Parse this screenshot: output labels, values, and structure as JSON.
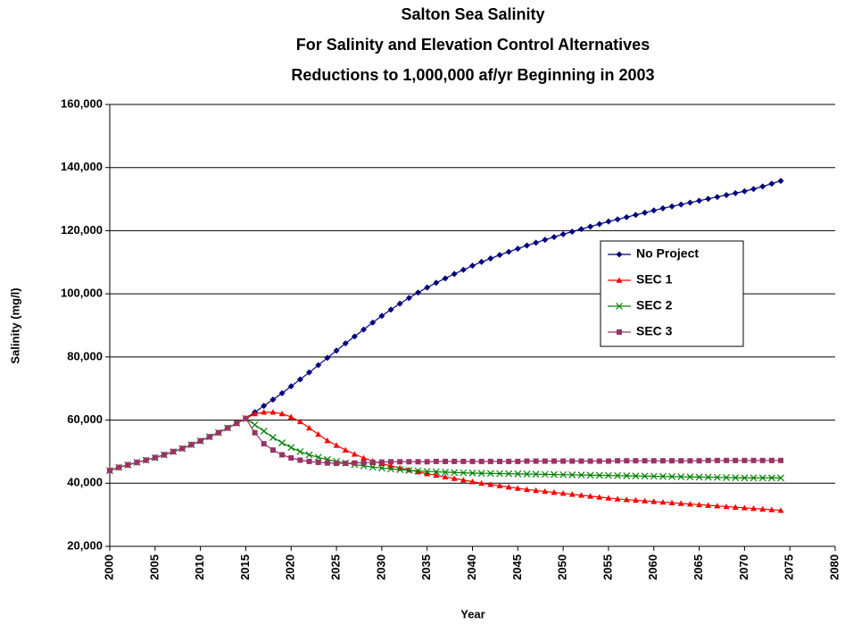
{
  "chart_data": {
    "type": "line",
    "title": [
      "Salton Sea Salinity",
      "For Salinity and Elevation Control Alternatives",
      "Reductions to 1,000,000 af/yr Beginning in 2003"
    ],
    "xlabel": "Year",
    "ylabel": "Salinity (mg/l)",
    "xlim": [
      2000,
      2080
    ],
    "xticks": [
      2000,
      2005,
      2010,
      2015,
      2020,
      2025,
      2030,
      2035,
      2040,
      2045,
      2050,
      2055,
      2060,
      2065,
      2070,
      2075,
      2080
    ],
    "ylim": [
      20000,
      160000
    ],
    "yticks": [
      {
        "value": 20000,
        "label": "20,000"
      },
      {
        "value": 40000,
        "label": "40,000"
      },
      {
        "value": 60000,
        "label": "60,000"
      },
      {
        "value": 80000,
        "label": "80,000"
      },
      {
        "value": 100000,
        "label": "100,000"
      },
      {
        "value": 120000,
        "label": "120,000"
      },
      {
        "value": 140000,
        "label": "140,000"
      },
      {
        "value": 160000,
        "label": "160,000"
      }
    ],
    "grid": true,
    "legend": "right",
    "x": [
      2000,
      2001,
      2002,
      2003,
      2004,
      2005,
      2006,
      2007,
      2008,
      2009,
      2010,
      2011,
      2012,
      2013,
      2014,
      2015,
      2016,
      2017,
      2018,
      2019,
      2020,
      2021,
      2022,
      2023,
      2024,
      2025,
      2026,
      2027,
      2028,
      2029,
      2030,
      2031,
      2032,
      2033,
      2034,
      2035,
      2036,
      2037,
      2038,
      2039,
      2040,
      2041,
      2042,
      2043,
      2044,
      2045,
      2046,
      2047,
      2048,
      2049,
      2050,
      2051,
      2052,
      2053,
      2054,
      2055,
      2056,
      2057,
      2058,
      2059,
      2060,
      2061,
      2062,
      2063,
      2064,
      2065,
      2066,
      2067,
      2068,
      2069,
      2070,
      2071,
      2072,
      2073,
      2074
    ],
    "series": [
      {
        "name": "No Project",
        "color": "#000080",
        "marker": "diamond",
        "values": [
          44000,
          45000,
          45800,
          46600,
          47300,
          48100,
          49000,
          50000,
          51000,
          52200,
          53400,
          54700,
          56000,
          57500,
          59000,
          60500,
          62500,
          64500,
          66500,
          68500,
          70700,
          72900,
          75100,
          77400,
          79700,
          82000,
          84300,
          86500,
          88700,
          90900,
          93000,
          95000,
          96900,
          98700,
          100400,
          102000,
          103500,
          104900,
          106300,
          107600,
          108900,
          110100,
          111200,
          112300,
          113300,
          114300,
          115300,
          116200,
          117100,
          118000,
          118900,
          119700,
          120500,
          121300,
          122100,
          122900,
          123600,
          124300,
          125000,
          125700,
          126400,
          127100,
          127700,
          128300,
          128900,
          129500,
          130100,
          130700,
          131300,
          131900,
          132500,
          133200,
          134000,
          134900,
          135800
        ]
      },
      {
        "name": "SEC 1",
        "color": "#ff0000",
        "marker": "triangle",
        "values": [
          44000,
          45000,
          45800,
          46600,
          47300,
          48100,
          49000,
          50000,
          51000,
          52200,
          53400,
          54700,
          56000,
          57500,
          59000,
          60500,
          62000,
          62500,
          62500,
          62000,
          61000,
          59500,
          57500,
          55500,
          53500,
          52000,
          50500,
          49200,
          48000,
          47000,
          46200,
          45500,
          44800,
          44200,
          43600,
          43000,
          42500,
          42000,
          41500,
          41000,
          40500,
          40000,
          39600,
          39200,
          38800,
          38400,
          38000,
          37700,
          37400,
          37100,
          36800,
          36500,
          36200,
          35900,
          35600,
          35300,
          35000,
          34800,
          34600,
          34400,
          34200,
          34000,
          33800,
          33600,
          33400,
          33200,
          33000,
          32800,
          32600,
          32400,
          32200,
          32000,
          31800,
          31600,
          31400
        ]
      },
      {
        "name": "SEC 2",
        "color": "#008000",
        "marker": "x",
        "values": [
          44000,
          45000,
          45800,
          46600,
          47300,
          48100,
          49000,
          50000,
          51000,
          52200,
          53400,
          54700,
          56000,
          57500,
          59000,
          60500,
          58500,
          56500,
          54500,
          52800,
          51300,
          50000,
          49000,
          48200,
          47500,
          46900,
          46400,
          45900,
          45500,
          45100,
          44800,
          44500,
          44300,
          44100,
          43900,
          43700,
          43600,
          43500,
          43400,
          43300,
          43200,
          43150,
          43100,
          43050,
          43000,
          42950,
          42900,
          42850,
          42800,
          42750,
          42700,
          42650,
          42600,
          42550,
          42500,
          42450,
          42400,
          42350,
          42300,
          42250,
          42200,
          42150,
          42100,
          42050,
          42000,
          41950,
          41900,
          41850,
          41800,
          41750,
          41700,
          41700,
          41700,
          41700,
          41700
        ]
      },
      {
        "name": "SEC 3",
        "color": "#993366",
        "marker": "square",
        "values": [
          44000,
          45000,
          45800,
          46600,
          47300,
          48100,
          49000,
          50000,
          51000,
          52200,
          53400,
          54700,
          56000,
          57500,
          59000,
          60500,
          56000,
          52500,
          50500,
          49000,
          48000,
          47300,
          46900,
          46600,
          46400,
          46300,
          46300,
          46400,
          46500,
          46600,
          46700,
          46800,
          46800,
          46800,
          46800,
          46800,
          46900,
          46900,
          46900,
          46900,
          46900,
          46900,
          46900,
          46900,
          46900,
          46900,
          47000,
          47000,
          47000,
          47000,
          47000,
          47000,
          47000,
          47000,
          47000,
          47000,
          47100,
          47100,
          47100,
          47100,
          47100,
          47100,
          47100,
          47100,
          47100,
          47100,
          47200,
          47200,
          47200,
          47200,
          47200,
          47200,
          47200,
          47200,
          47200
        ]
      }
    ]
  }
}
